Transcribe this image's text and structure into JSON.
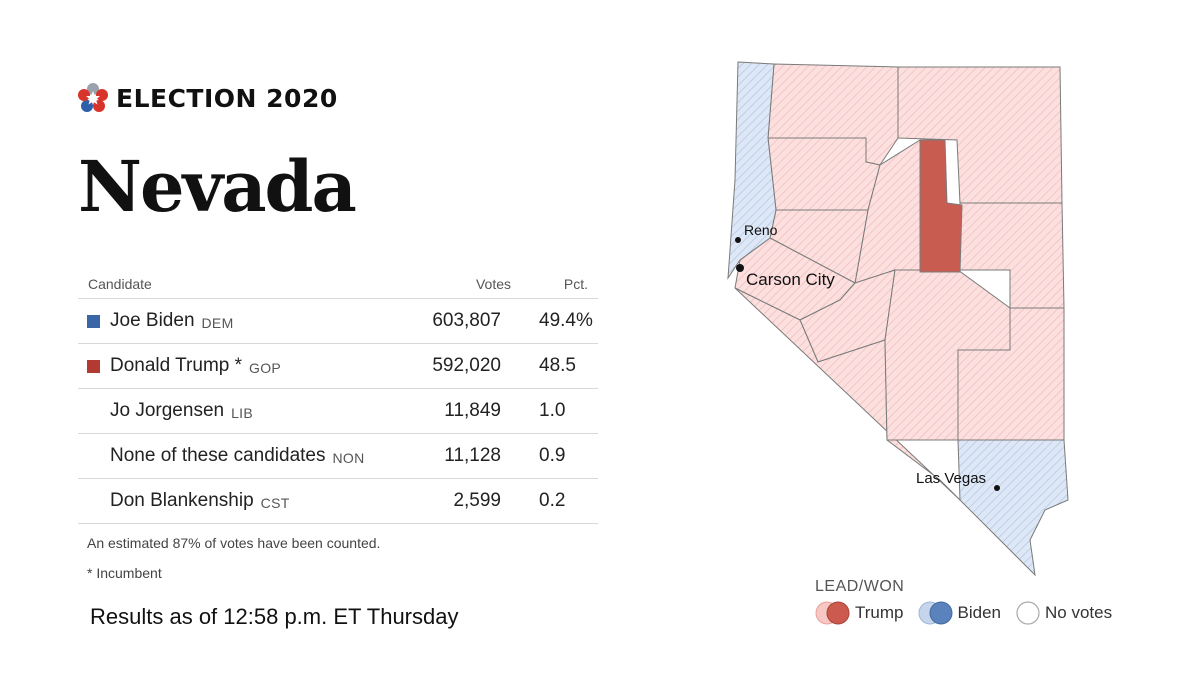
{
  "brand": {
    "text": "ELECTION 2020",
    "logo_icon": "star-icon"
  },
  "state": "Nevada",
  "table": {
    "headers": {
      "candidate": "Candidate",
      "votes": "Votes",
      "pct": "Pct."
    },
    "rows": [
      {
        "name": "Joe Biden",
        "party": "DEM",
        "votes": "603,807",
        "pct": "49.4%",
        "color": "#3a66a5"
      },
      {
        "name": "Donald Trump *",
        "party": "GOP",
        "votes": "592,020",
        "pct": "48.5",
        "color": "#b23a30"
      },
      {
        "name": "Jo Jorgensen",
        "party": "LIB",
        "votes": "11,849",
        "pct": "1.0",
        "color": ""
      },
      {
        "name": "None of these candidates",
        "party": "NON",
        "votes": "11,128",
        "pct": "0.9",
        "color": ""
      },
      {
        "name": "Don Blankenship",
        "party": "CST",
        "votes": "2,599",
        "pct": "0.2",
        "color": ""
      }
    ]
  },
  "notes": {
    "counted": "An estimated 87% of votes have been counted.",
    "incumbent": "* Incumbent"
  },
  "as_of": "Results as of 12:58 p.m. ET Thursday",
  "map": {
    "cities": {
      "reno": "Reno",
      "carson_city": "Carson City",
      "las_vegas": "Las Vegas"
    },
    "colors": {
      "trump_lead": "#fadada",
      "trump_won": "#c95c50",
      "biden_lead": "#d6e2f3",
      "biden_won": "#5f87c2",
      "border": "#7a7a7a"
    }
  },
  "legend": {
    "title": "LEAD/WON",
    "items": [
      {
        "label": "Trump",
        "lead": "#f6c7c3",
        "won": "#cc5a4e"
      },
      {
        "label": "Biden",
        "lead": "#c5d5ec",
        "won": "#5a82bd"
      },
      {
        "label": "No votes"
      }
    ]
  }
}
